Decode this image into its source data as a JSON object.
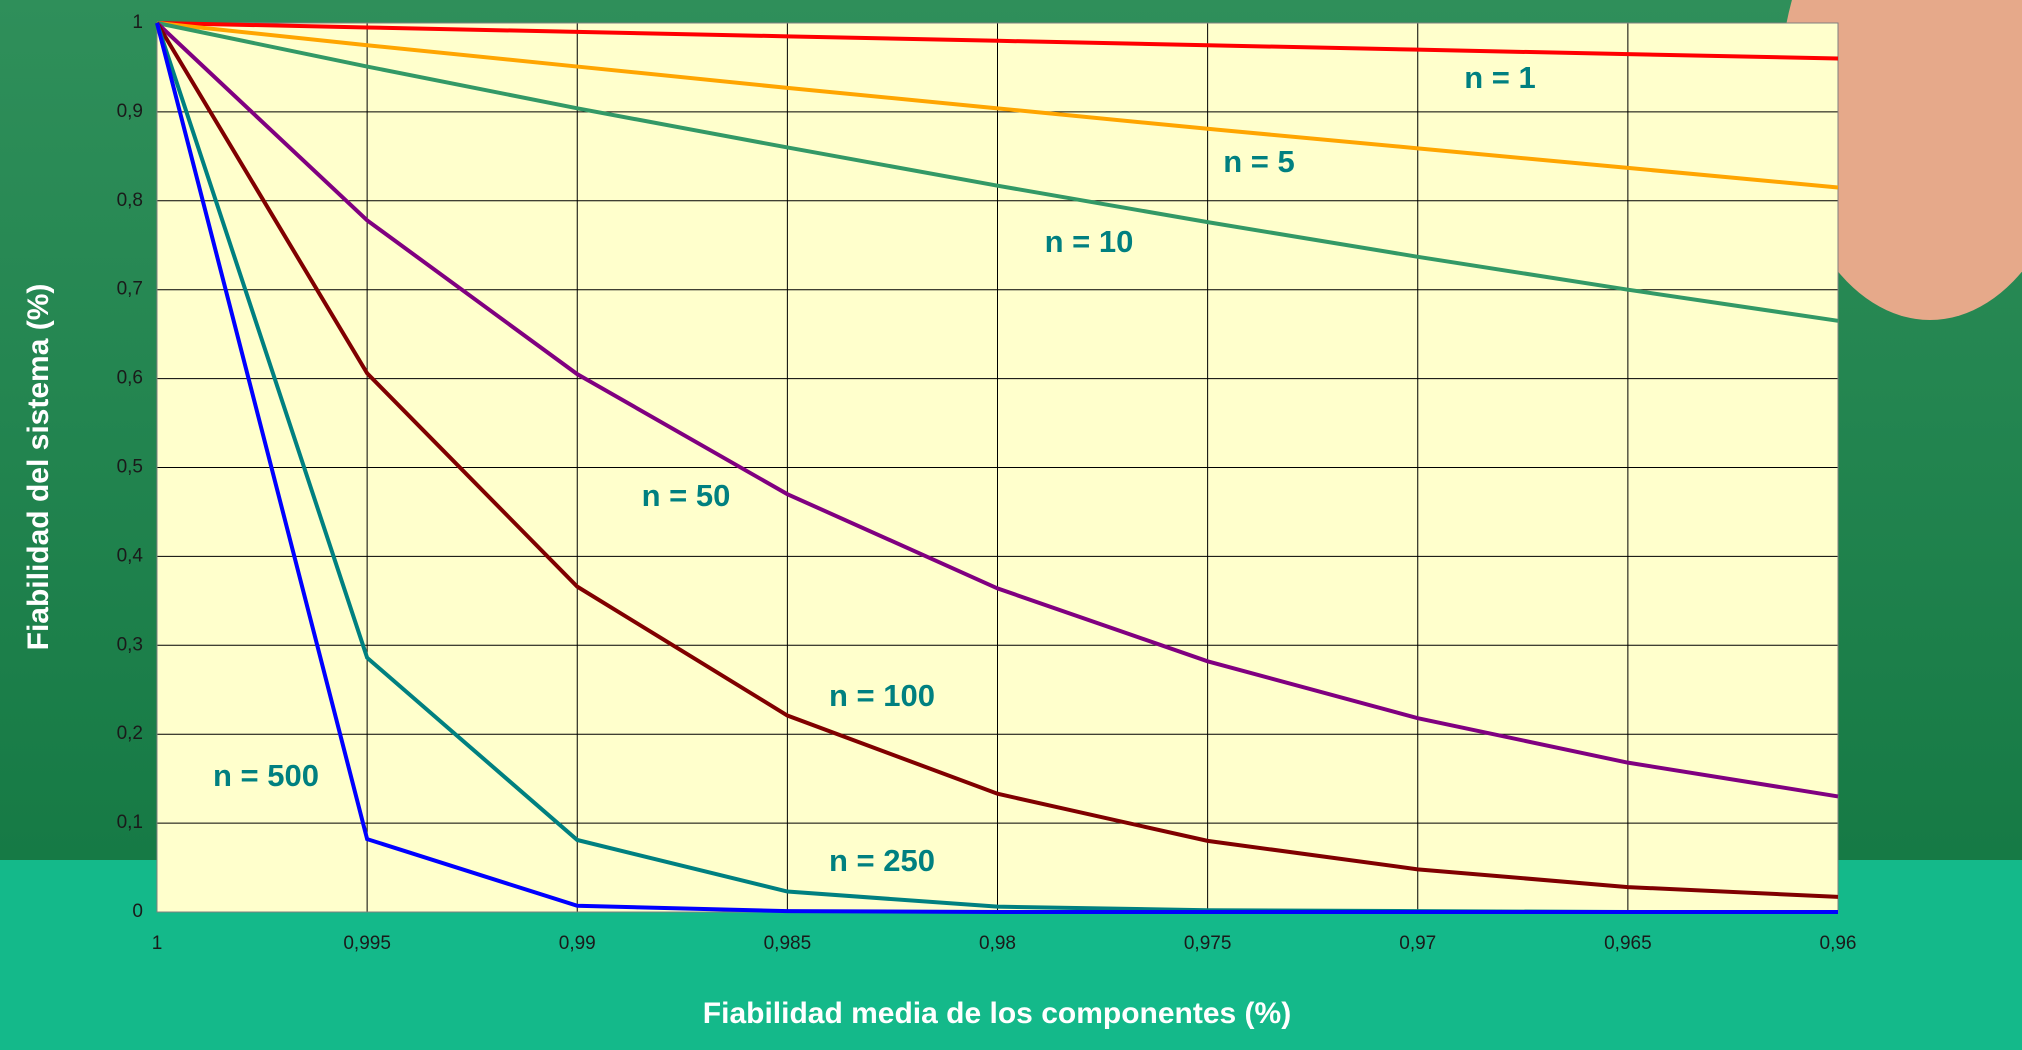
{
  "chart_data": {
    "type": "line",
    "x_label": "Fiabilidad media de los componentes (%)",
    "y_label": "Fiabilidad del sistema (%)",
    "x": [
      1,
      0.995,
      0.99,
      0.985,
      0.98,
      0.975,
      0.97,
      0.965,
      0.96
    ],
    "xlim": [
      1,
      0.96
    ],
    "xticks": [
      1,
      {
        "value": 0.995,
        "label": "0,995"
      },
      {
        "value": 0.99,
        "label": "0,99"
      },
      {
        "value": 0.985,
        "label": "0,985"
      },
      {
        "value": 0.98,
        "label": "0,98"
      },
      {
        "value": 0.975,
        "label": "0,975"
      },
      {
        "value": 0.97,
        "label": "0,97"
      },
      {
        "value": 0.965,
        "label": "0,965"
      },
      {
        "value": 0.96,
        "label": "0,96"
      }
    ],
    "ylim": [
      0,
      1
    ],
    "yticks": [
      0,
      {
        "value": 0.1,
        "label": "0,1"
      },
      {
        "value": 0.2,
        "label": "0,2"
      },
      {
        "value": 0.3,
        "label": "0,3"
      },
      {
        "value": 0.4,
        "label": "0,4"
      },
      {
        "value": 0.5,
        "label": "0,5"
      },
      {
        "value": 0.6,
        "label": "0,6"
      },
      {
        "value": 0.7,
        "label": "0,7"
      },
      {
        "value": 0.8,
        "label": "0,8"
      },
      {
        "value": 0.9,
        "label": "0,9"
      },
      1
    ],
    "grid": true,
    "series": [
      {
        "name": "n = 1",
        "color": "#ff0000",
        "values": [
          1,
          0.995,
          0.99,
          0.985,
          0.98,
          0.975,
          0.97,
          0.965,
          0.96
        ]
      },
      {
        "name": "n = 5",
        "color": "#ffa500",
        "values": [
          1,
          0.975,
          0.951,
          0.927,
          0.904,
          0.881,
          0.859,
          0.837,
          0.815
        ]
      },
      {
        "name": "n = 10",
        "color": "#339966",
        "values": [
          1,
          0.951,
          0.904,
          0.86,
          0.817,
          0.776,
          0.737,
          0.7,
          0.665
        ]
      },
      {
        "name": "n = 50",
        "color": "#800080",
        "values": [
          1,
          0.778,
          0.605,
          0.47,
          0.364,
          0.282,
          0.218,
          0.168,
          0.13
        ]
      },
      {
        "name": "n = 100",
        "color": "#800000",
        "values": [
          1,
          0.606,
          0.366,
          0.221,
          0.133,
          0.08,
          0.048,
          0.028,
          0.017
        ]
      },
      {
        "name": "n = 250",
        "color": "#008080",
        "values": [
          1,
          0.286,
          0.081,
          0.023,
          0.006,
          0.002,
          0.001,
          0,
          0
        ]
      },
      {
        "name": "n = 500",
        "color": "#0000ff",
        "values": [
          1,
          0.082,
          0.007,
          0.001,
          0,
          0,
          0,
          0,
          0
        ]
      }
    ]
  }
}
